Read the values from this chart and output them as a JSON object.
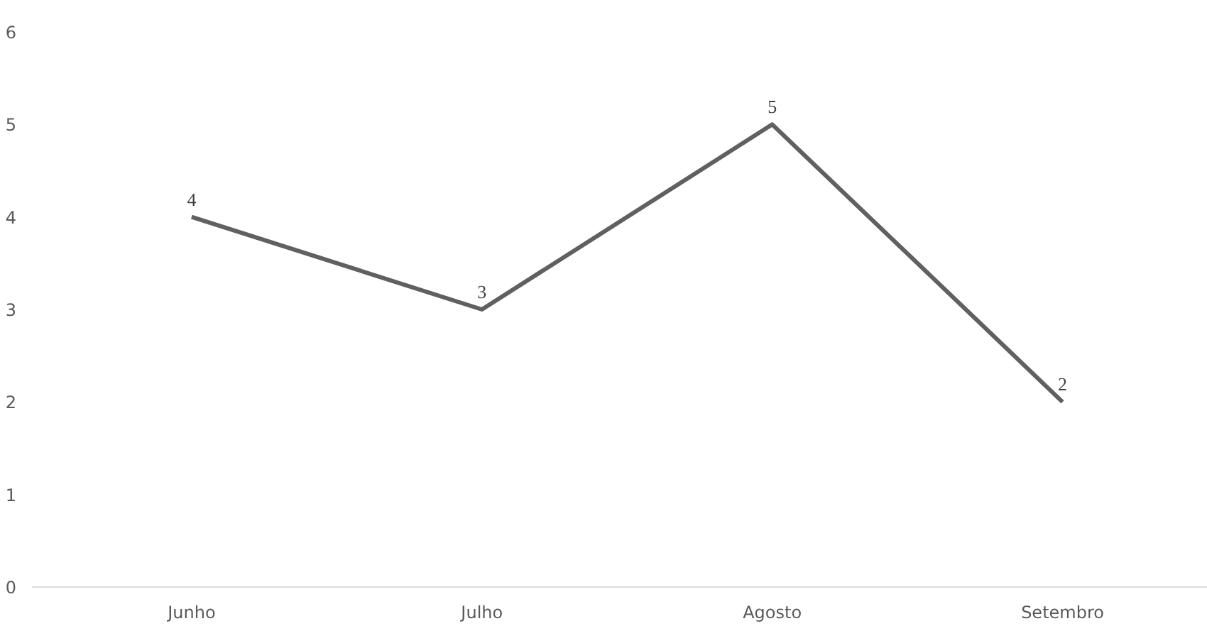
{
  "chart_data": {
    "type": "line",
    "categories": [
      "Junho",
      "Julho",
      "Agosto",
      "Setembro"
    ],
    "series": [
      {
        "color": "#606060",
        "values": [
          4,
          3,
          5,
          2
        ]
      }
    ],
    "ylim": [
      0,
      6
    ],
    "yticks": [
      0,
      1,
      2,
      3,
      4,
      5,
      6
    ],
    "data_labels": true,
    "marker": "none",
    "line_style": "solid"
  }
}
